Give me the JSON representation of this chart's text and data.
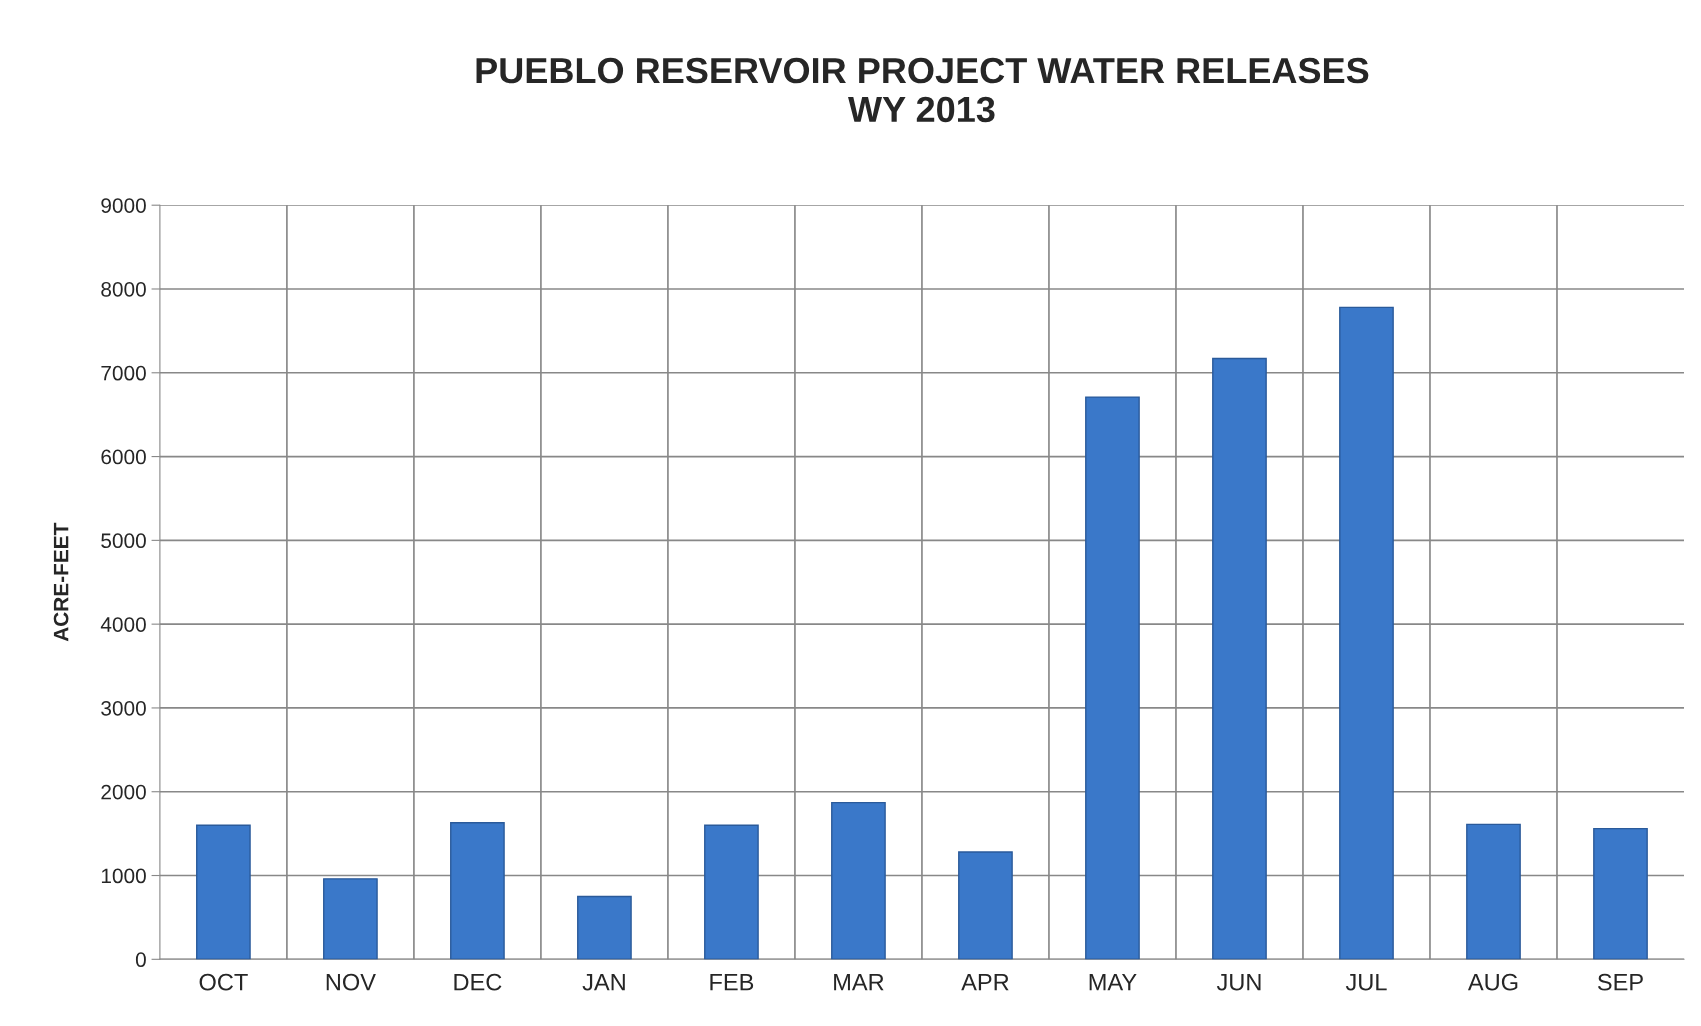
{
  "chart_data": {
    "type": "bar",
    "title": "PUEBLO RESERVOIR PROJECT WATER RELEASES\nWY 2013",
    "ylabel": "ACRE-FEET",
    "categories": [
      "OCT",
      "NOV",
      "DEC",
      "JAN",
      "FEB",
      "MAR",
      "APR",
      "MAY",
      "JUN",
      "JUL",
      "AUG",
      "SEP"
    ],
    "values": [
      1600,
      960,
      1630,
      750,
      1600,
      1870,
      1280,
      6710,
      7170,
      7780,
      1610,
      1560
    ],
    "color": "#3a78c9",
    "ylim": [
      0,
      9000
    ],
    "yticks": [
      0,
      1000,
      2000,
      3000,
      4000,
      5000,
      6000,
      7000,
      8000,
      9000
    ],
    "grid": true,
    "legend": false
  }
}
